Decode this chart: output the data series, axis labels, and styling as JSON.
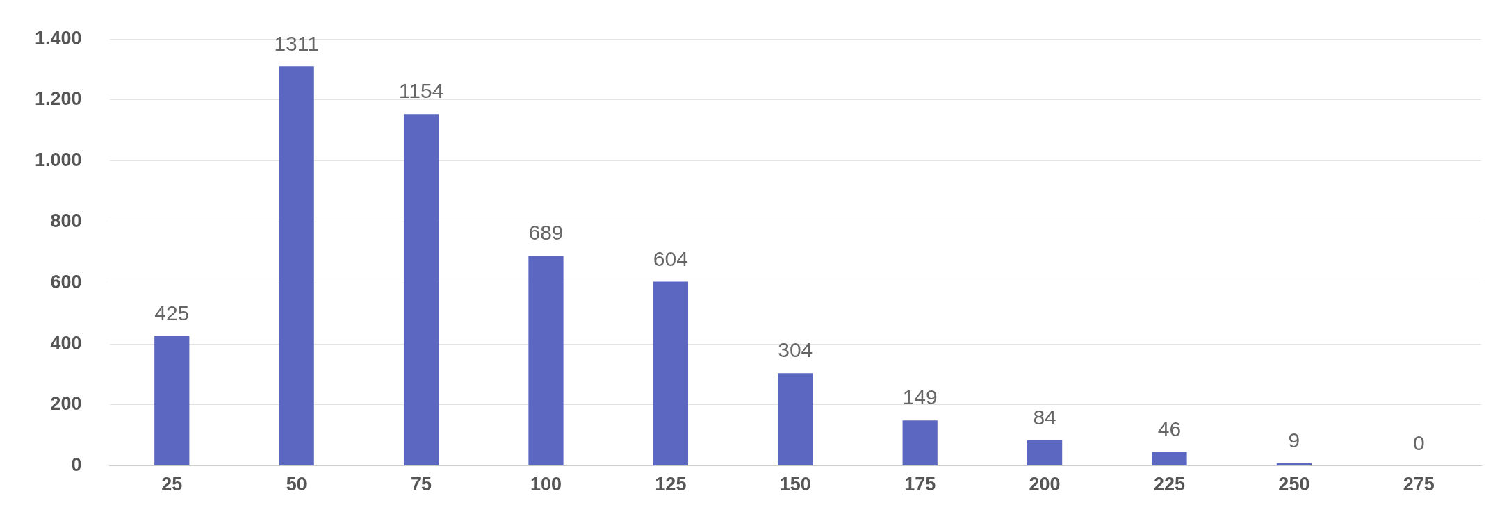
{
  "chart_data": {
    "type": "bar",
    "categories": [
      "25",
      "50",
      "75",
      "100",
      "125",
      "150",
      "175",
      "200",
      "225",
      "250",
      "275"
    ],
    "values": [
      425,
      1311,
      1154,
      689,
      604,
      304,
      149,
      84,
      46,
      9,
      0
    ],
    "color": "#5b67c0",
    "ylim": [
      0,
      1400
    ],
    "yticks": [
      0,
      200,
      400,
      600,
      800,
      {
        "value": 1000,
        "label": "1.000"
      },
      {
        "value": 1200,
        "label": "1.200"
      },
      {
        "value": 1400,
        "label": "1.400"
      }
    ],
    "grid": "y",
    "data_labels": true
  }
}
